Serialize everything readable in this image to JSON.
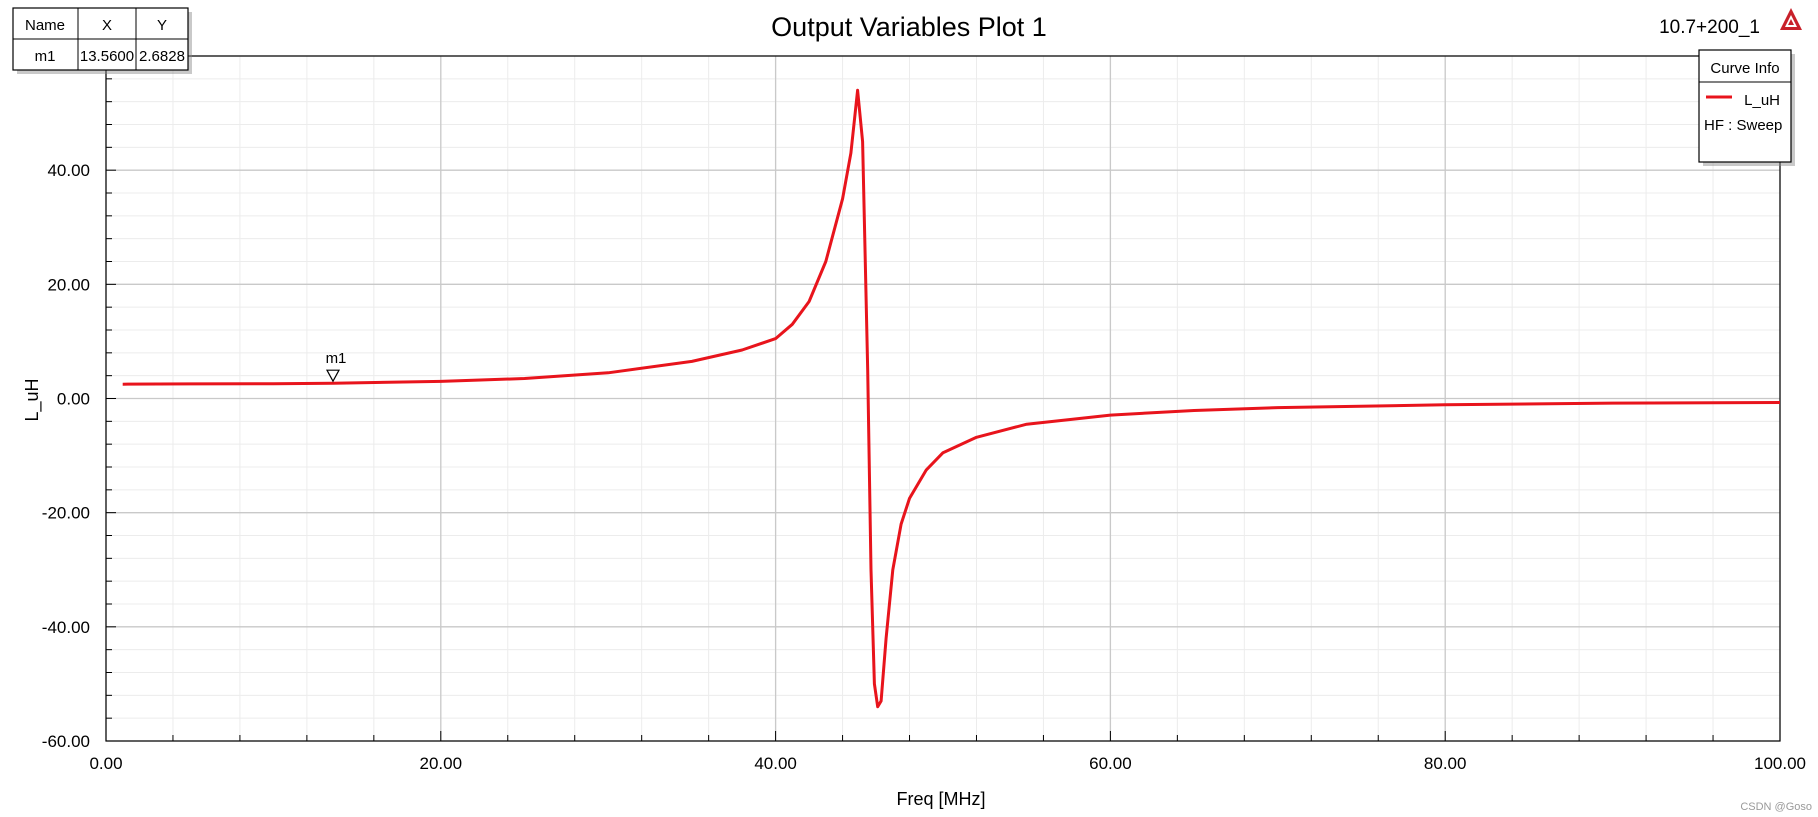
{
  "window": {
    "title": "Output Variables Plot 1",
    "design_label": "10.7+200_1",
    "watermark": "CSDN @Goso"
  },
  "marker_table": {
    "headers": [
      "Name",
      "X",
      "Y"
    ],
    "rows": [
      {
        "name": "m1",
        "x": "13.5600",
        "y": "2.6828"
      }
    ]
  },
  "curve_info": {
    "title": "Curve Info",
    "entries": [
      {
        "name": "L_uH",
        "source": "HF : Sweep",
        "color": "#e8141c"
      }
    ]
  },
  "icons": {
    "corner_logo": "ansys-logo-icon",
    "marker": "triangle-down-marker-icon"
  },
  "chart_data": {
    "type": "line",
    "title": "Output Variables Plot 1",
    "xlabel": "Freq [MHz]",
    "ylabel": "L_uH",
    "xlim": [
      0,
      100
    ],
    "ylim": [
      -60,
      60
    ],
    "x_ticks": [
      "0.00",
      "20.00",
      "40.00",
      "60.00",
      "80.00",
      "100.00"
    ],
    "y_ticks": [
      "40.00",
      "20.00",
      "0.00",
      "-20.00",
      "-40.00",
      "-60.00"
    ],
    "grid": true,
    "legend": "top-right",
    "series": [
      {
        "name": "L_uH",
        "color": "#e8141c",
        "x": [
          1,
          5,
          10,
          13.56,
          20,
          25,
          30,
          35,
          38,
          40,
          41,
          42,
          43,
          44,
          44.5,
          44.9,
          45.2,
          45.5,
          45.7,
          45.9,
          46.1,
          46.3,
          46.6,
          47,
          47.5,
          48,
          49,
          50,
          52,
          55,
          60,
          65,
          70,
          80,
          90,
          100
        ],
        "y": [
          2.5,
          2.55,
          2.6,
          2.6828,
          3.0,
          3.5,
          4.5,
          6.5,
          8.5,
          10.5,
          13,
          17,
          24,
          35,
          43,
          54,
          45,
          5,
          -30,
          -50,
          -54,
          -53,
          -42,
          -30,
          -22,
          -17.5,
          -12.5,
          -9.5,
          -6.8,
          -4.5,
          -2.9,
          -2.1,
          -1.6,
          -1.1,
          -0.8,
          -0.7
        ]
      }
    ],
    "markers": [
      {
        "name": "m1",
        "x": 13.56,
        "y": 2.6828
      }
    ]
  }
}
